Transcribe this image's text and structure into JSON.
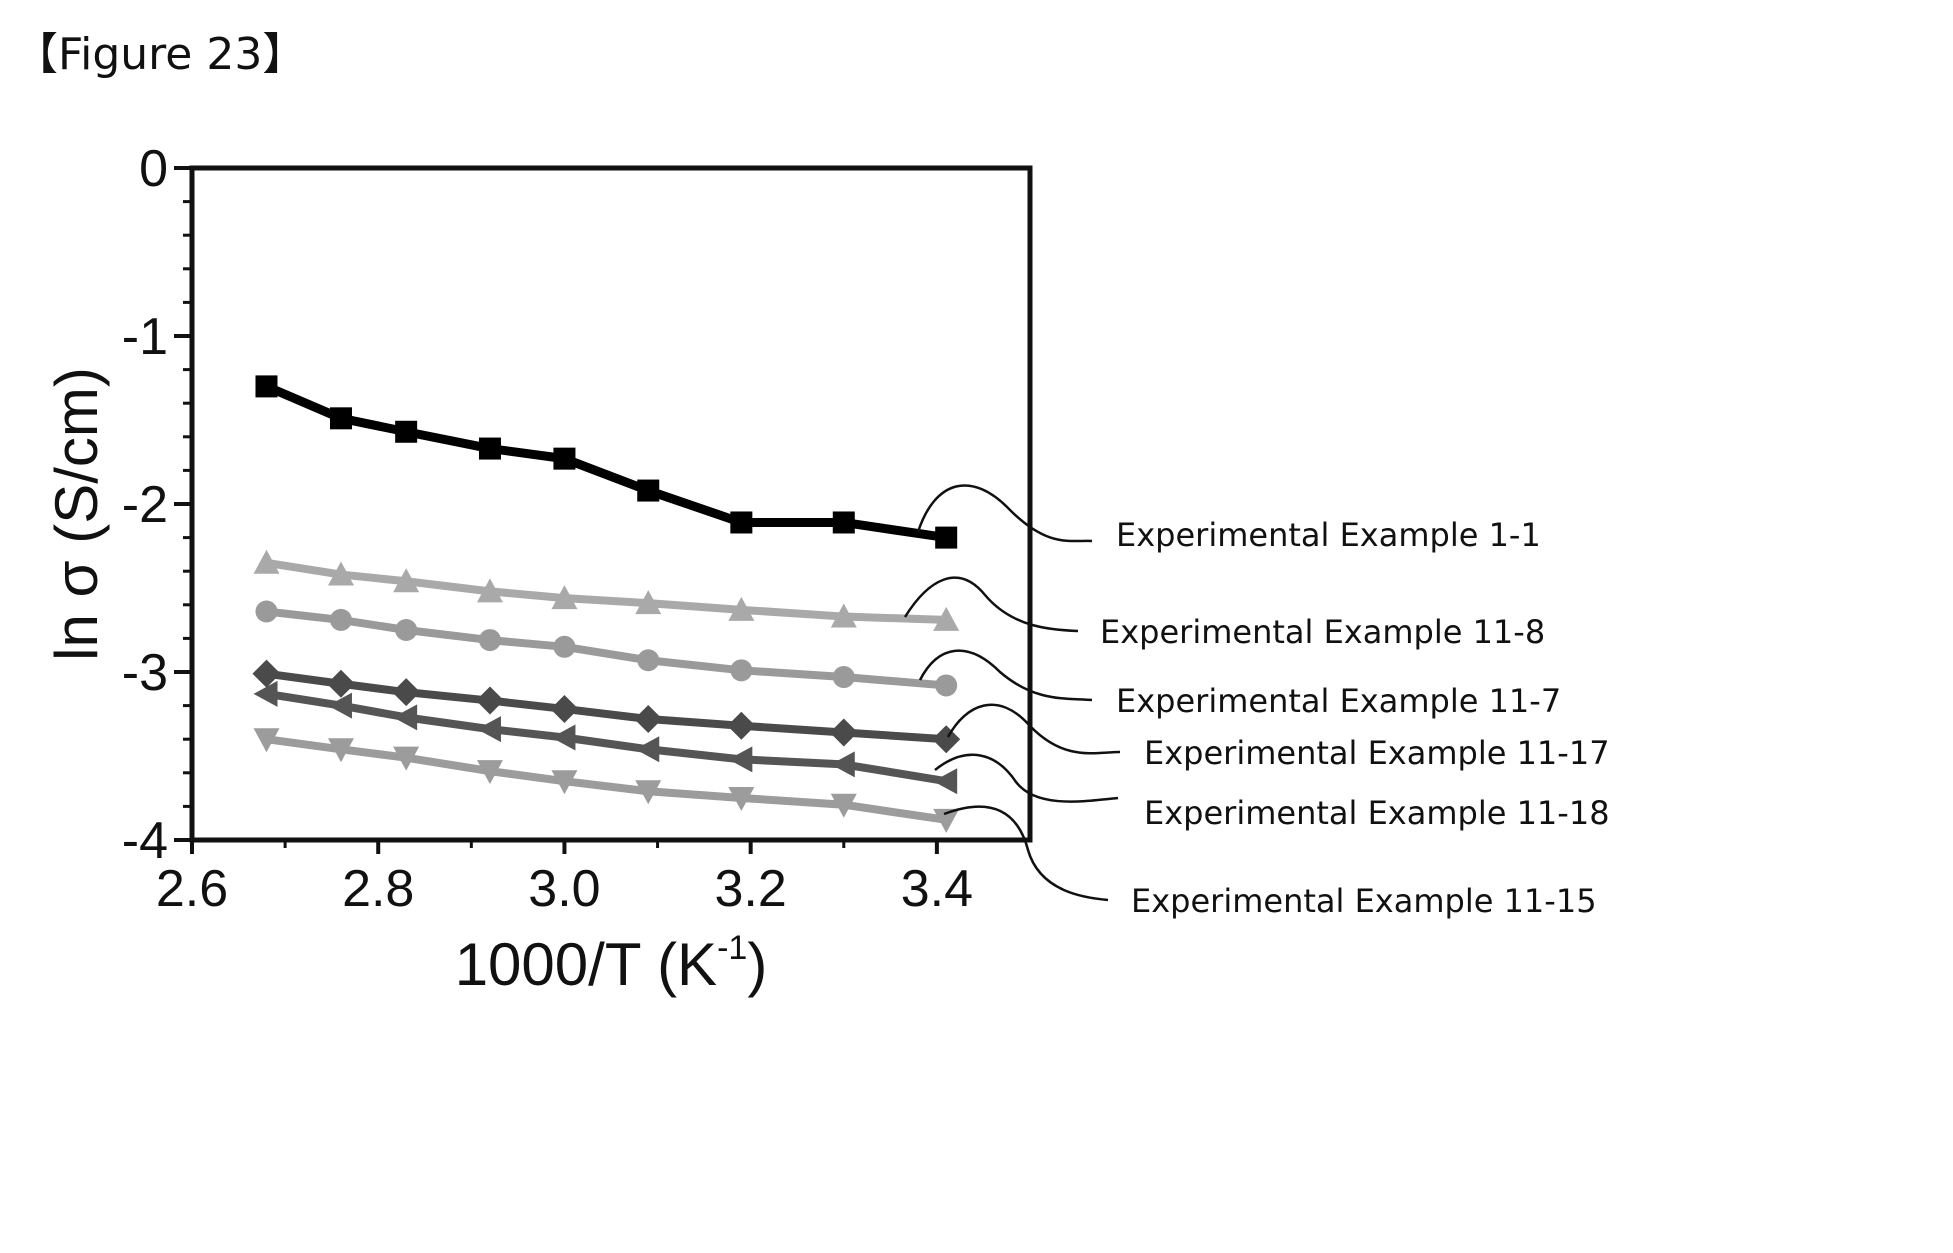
{
  "figure_label": "【Figure 23】",
  "chart_data": {
    "type": "line",
    "xlabel": "1000/T (K",
    "xlabel_superscript": "-1",
    "xlabel_close": ")",
    "ylabel": "ln σ (S/cm)",
    "xlim": [
      2.6,
      3.5
    ],
    "ylim": [
      -4,
      0
    ],
    "x_ticks": [
      "2.6",
      "2.8",
      "3.0",
      "3.2",
      "3.4"
    ],
    "y_ticks": [
      "0",
      "-1",
      "-2",
      "-3",
      "-4"
    ],
    "x": [
      2.68,
      2.76,
      2.83,
      2.92,
      3.0,
      3.09,
      3.19,
      3.3,
      3.41
    ],
    "series": [
      {
        "name": "Experimental Example 1-1",
        "marker": "square",
        "color": "#000000",
        "values": [
          -1.3,
          -1.49,
          -1.57,
          -1.67,
          -1.73,
          -1.92,
          -2.11,
          -2.11,
          -2.2
        ]
      },
      {
        "name": "Experimental Example 11-8",
        "marker": "triangle-up",
        "color": "#a9a9a9",
        "values": [
          -2.35,
          -2.42,
          -2.46,
          -2.52,
          -2.56,
          -2.59,
          -2.63,
          -2.67,
          -2.69
        ]
      },
      {
        "name": "Experimental Example 11-7",
        "marker": "circle",
        "color": "#9a9a9a",
        "values": [
          -2.64,
          -2.69,
          -2.75,
          -2.81,
          -2.85,
          -2.93,
          -2.99,
          -3.03,
          -3.08
        ]
      },
      {
        "name": "Experimental Example 11-17",
        "marker": "diamond",
        "color": "#4a4a4a",
        "values": [
          -3.01,
          -3.07,
          -3.12,
          -3.17,
          -3.22,
          -3.28,
          -3.32,
          -3.36,
          -3.4
        ]
      },
      {
        "name": "Experimental Example 11-18",
        "marker": "triangle-left",
        "color": "#555555",
        "values": [
          -3.13,
          -3.2,
          -3.27,
          -3.34,
          -3.39,
          -3.46,
          -3.52,
          -3.55,
          -3.65
        ]
      },
      {
        "name": "Experimental Example 11-15",
        "marker": "triangle-down",
        "color": "#9c9c9c",
        "values": [
          -3.4,
          -3.46,
          -3.51,
          -3.59,
          -3.65,
          -3.71,
          -3.75,
          -3.79,
          -3.88
        ]
      }
    ]
  }
}
